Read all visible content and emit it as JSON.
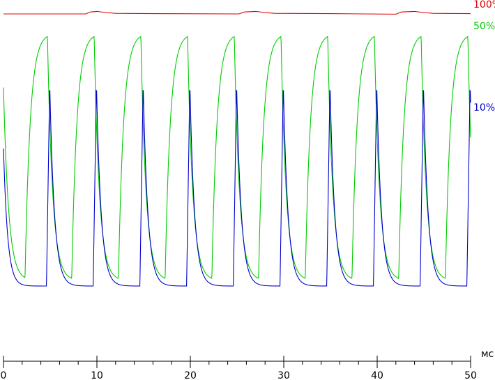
{
  "chart_data": {
    "type": "line",
    "xlim": [
      0,
      50
    ],
    "ylim": [
      0,
      100
    ],
    "x_unit": "мс",
    "x_tick_labels": [
      "0",
      "10",
      "20",
      "30",
      "40",
      "50"
    ],
    "x_major_ticks": [
      0,
      10,
      20,
      30,
      40,
      50
    ],
    "x_minor_step": 2,
    "grid": false,
    "period": 5,
    "series": [
      {
        "name": "100%",
        "color": "#e00000",
        "description_points": [
          [
            0,
            98.5
          ],
          [
            8.8,
            98.5
          ],
          [
            9.3,
            99.2
          ],
          [
            10,
            99.4
          ],
          [
            11,
            99.0
          ],
          [
            12,
            98.7
          ],
          [
            16,
            98.6
          ],
          [
            25.2,
            98.5
          ],
          [
            25.8,
            99.2
          ],
          [
            27,
            99.4
          ],
          [
            28,
            99.0
          ],
          [
            29,
            98.7
          ],
          [
            35,
            98.6
          ],
          [
            42.0,
            98.4
          ],
          [
            42.6,
            99.2
          ],
          [
            44,
            99.4
          ],
          [
            45,
            99.0
          ],
          [
            46,
            98.7
          ],
          [
            50,
            98.6
          ]
        ]
      },
      {
        "name": "50%",
        "color": "#00cc00",
        "peak": 91.5,
        "base": 2.5
      },
      {
        "name": "10%",
        "color": "#0000cc",
        "peak": 73.5,
        "base": 0.5
      }
    ]
  }
}
